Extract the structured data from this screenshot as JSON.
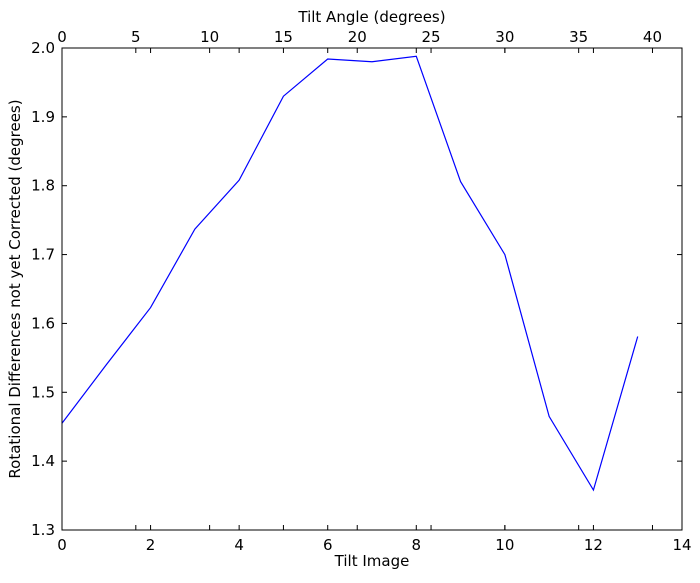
{
  "chart_data": {
    "type": "line",
    "title": "",
    "xlabel": "Tilt Image",
    "ylabel": "Rotational Differences not yet Corrected (degrees)",
    "x2label": "Tilt Angle (degrees)",
    "xlim": [
      0,
      14
    ],
    "ylim": [
      1.3,
      2.0
    ],
    "x2lim": [
      0,
      42
    ],
    "xticks": [
      0,
      2,
      4,
      6,
      8,
      10,
      12,
      14
    ],
    "yticks": [
      1.3,
      1.4,
      1.5,
      1.6,
      1.7,
      1.8,
      1.9,
      2.0
    ],
    "x2ticks": [
      0,
      5,
      10,
      15,
      20,
      25,
      30,
      35,
      40
    ],
    "xtick_labels": [
      "0",
      "2",
      "4",
      "6",
      "8",
      "10",
      "12",
      "14"
    ],
    "ytick_labels": [
      "1.3",
      "1.4",
      "1.5",
      "1.6",
      "1.7",
      "1.8",
      "1.9",
      "2.0"
    ],
    "x2tick_labels": [
      "0",
      "5",
      "10",
      "15",
      "20",
      "25",
      "30",
      "35",
      "40"
    ],
    "grid": false,
    "legend": "none",
    "series": [
      {
        "color": "#0000ff",
        "x": [
          0,
          1,
          2,
          3,
          4,
          5,
          6,
          7,
          8,
          9,
          10,
          11,
          12,
          13
        ],
        "y": [
          1.455,
          1.54,
          1.623,
          1.737,
          1.808,
          1.93,
          1.984,
          1.98,
          1.988,
          1.806,
          1.7,
          1.465,
          1.358,
          1.581
        ]
      }
    ]
  },
  "colors": {
    "line": "#0000ff",
    "axes": "#000000",
    "background": "#ffffff"
  }
}
